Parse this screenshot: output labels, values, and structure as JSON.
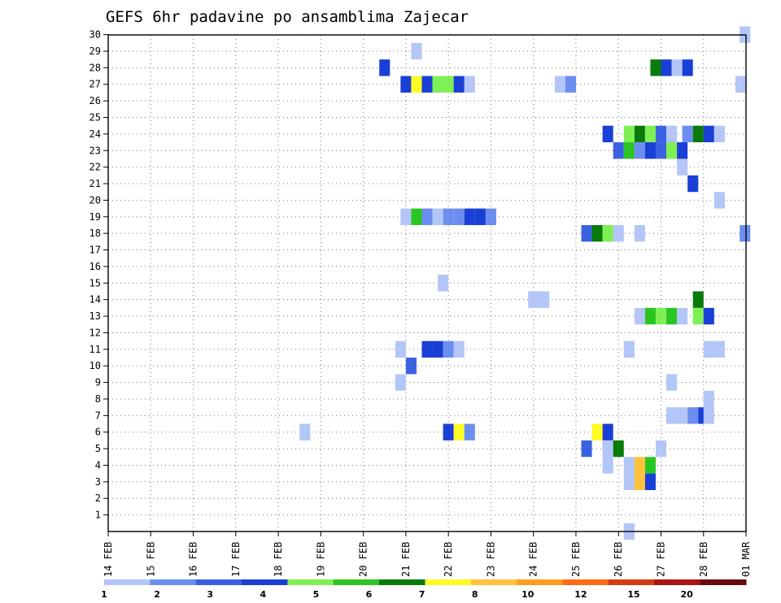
{
  "chart_data": {
    "type": "heatmap",
    "title": "GEFS 6hr padavine po ansamblima Zajecar",
    "y_ticks": [
      "1",
      "2",
      "3",
      "4",
      "5",
      "6",
      "7",
      "8",
      "9",
      "10",
      "11",
      "12",
      "13",
      "14",
      "15",
      "16",
      "17",
      "18",
      "19",
      "20",
      "21",
      "22",
      "23",
      "24",
      "25",
      "26",
      "27",
      "28",
      "29",
      "30"
    ],
    "x_ticks": [
      "14 FEB",
      "15 FEB",
      "16 FEB",
      "17 FEB",
      "18 FEB",
      "19 FEB",
      "20 FEB",
      "21 FEB",
      "22 FEB",
      "23 FEB",
      "24 FEB",
      "25 FEB",
      "26 FEB",
      "27 FEB",
      "28 FEB",
      "01 MAR"
    ],
    "colorbar": {
      "colors": [
        "#b3c6f7",
        "#6b8ef0",
        "#3a62e0",
        "#1a3fd6",
        "#7ef054",
        "#29c523",
        "#0a7a0a",
        "#fffb24",
        "#ffc23a",
        "#ff9d1e",
        "#ff6a14",
        "#d63a14",
        "#ab1414",
        "#6b0a0a"
      ],
      "labels": [
        {
          "text": "1",
          "at": 0
        },
        {
          "text": "2",
          "at": 1
        },
        {
          "text": "3",
          "at": 2
        },
        {
          "text": "4",
          "at": 3
        },
        {
          "text": "5",
          "at": 4
        },
        {
          "text": "6",
          "at": 5
        },
        {
          "text": "7",
          "at": 6
        },
        {
          "text": "8",
          "at": 7
        },
        {
          "text": "10",
          "at": 8
        },
        {
          "text": "12",
          "at": 9
        },
        {
          "text": "15",
          "at": 10
        },
        {
          "text": "20",
          "at": 11
        }
      ]
    },
    "cells": [
      {
        "s": 30,
        "t": 59.4,
        "c": 0
      },
      {
        "s": 29,
        "t": 28.5,
        "c": 0
      },
      {
        "s": 28,
        "t": 25.5,
        "c": 3
      },
      {
        "s": 28,
        "t": 51,
        "c": 6
      },
      {
        "s": 28,
        "t": 52,
        "c": 3
      },
      {
        "s": 28,
        "t": 53,
        "c": 0
      },
      {
        "s": 28,
        "t": 54,
        "c": 3
      },
      {
        "s": 27,
        "t": 27.5,
        "c": 3
      },
      {
        "s": 27,
        "t": 28.5,
        "c": 7
      },
      {
        "s": 27,
        "t": 29.5,
        "c": 3
      },
      {
        "s": 27,
        "t": 30.5,
        "c": 4
      },
      {
        "s": 27,
        "t": 31.5,
        "c": 4
      },
      {
        "s": 27,
        "t": 32.5,
        "c": 3
      },
      {
        "s": 27,
        "t": 33.5,
        "c": 0
      },
      {
        "s": 27,
        "t": 42,
        "c": 0
      },
      {
        "s": 27,
        "t": 43,
        "c": 1
      },
      {
        "s": 27,
        "t": 59,
        "c": 0
      },
      {
        "s": 24,
        "t": 46.5,
        "c": 3
      },
      {
        "s": 24,
        "t": 48.5,
        "c": 4
      },
      {
        "s": 24,
        "t": 49.5,
        "c": 6
      },
      {
        "s": 24,
        "t": 50.5,
        "c": 4
      },
      {
        "s": 24,
        "t": 51.5,
        "c": 2
      },
      {
        "s": 24,
        "t": 52.5,
        "c": 0
      },
      {
        "s": 24,
        "t": 54,
        "c": 1
      },
      {
        "s": 24,
        "t": 55,
        "c": 6
      },
      {
        "s": 24,
        "t": 56,
        "c": 3
      },
      {
        "s": 24,
        "t": 57,
        "c": 0
      },
      {
        "s": 23,
        "t": 47.5,
        "c": 2
      },
      {
        "s": 23,
        "t": 48.5,
        "c": 5
      },
      {
        "s": 23,
        "t": 49.5,
        "c": 1
      },
      {
        "s": 23,
        "t": 50.5,
        "c": 3
      },
      {
        "s": 23,
        "t": 51.5,
        "c": 2
      },
      {
        "s": 23,
        "t": 52.5,
        "c": 4
      },
      {
        "s": 23,
        "t": 53.5,
        "c": 3
      },
      {
        "s": 22,
        "t": 53.5,
        "c": 0
      },
      {
        "s": 21,
        "t": 54.5,
        "c": 3
      },
      {
        "s": 20,
        "t": 57,
        "c": 0
      },
      {
        "s": 19,
        "t": 27.5,
        "c": 0
      },
      {
        "s": 19,
        "t": 28.5,
        "c": 5
      },
      {
        "s": 19,
        "t": 29.5,
        "c": 1
      },
      {
        "s": 19,
        "t": 30.5,
        "c": 0
      },
      {
        "s": 19,
        "t": 31.5,
        "c": 1
      },
      {
        "s": 19,
        "t": 32.5,
        "c": 1
      },
      {
        "s": 19,
        "t": 33.5,
        "c": 3
      },
      {
        "s": 19,
        "t": 34.5,
        "c": 3
      },
      {
        "s": 19,
        "t": 35.5,
        "c": 1
      },
      {
        "s": 18,
        "t": 44.5,
        "c": 2
      },
      {
        "s": 18,
        "t": 45.5,
        "c": 6
      },
      {
        "s": 18,
        "t": 46.5,
        "c": 4
      },
      {
        "s": 18,
        "t": 47.5,
        "c": 0
      },
      {
        "s": 18,
        "t": 49.5,
        "c": 0
      },
      {
        "s": 18,
        "t": 59.4,
        "c": 1
      },
      {
        "s": 15,
        "t": 31,
        "c": 0
      },
      {
        "s": 14,
        "t": 39.5,
        "c": 0
      },
      {
        "s": 14,
        "t": 40.5,
        "c": 0
      },
      {
        "s": 14,
        "t": 55,
        "c": 6
      },
      {
        "s": 13,
        "t": 49.5,
        "c": 0
      },
      {
        "s": 13,
        "t": 50.5,
        "c": 5
      },
      {
        "s": 13,
        "t": 51.5,
        "c": 4
      },
      {
        "s": 13,
        "t": 52.5,
        "c": 5
      },
      {
        "s": 13,
        "t": 53.5,
        "c": 0
      },
      {
        "s": 13,
        "t": 55,
        "c": 4
      },
      {
        "s": 13,
        "t": 56,
        "c": 3
      },
      {
        "s": 11,
        "t": 27,
        "c": 0
      },
      {
        "s": 11,
        "t": 29.5,
        "c": 3
      },
      {
        "s": 11,
        "t": 30.5,
        "c": 3
      },
      {
        "s": 11,
        "t": 31.5,
        "c": 1
      },
      {
        "s": 11,
        "t": 32.5,
        "c": 0
      },
      {
        "s": 11,
        "t": 48.5,
        "c": 0
      },
      {
        "s": 11,
        "t": 56,
        "c": 0
      },
      {
        "s": 11,
        "t": 57,
        "c": 0
      },
      {
        "s": 10,
        "t": 28,
        "c": 2
      },
      {
        "s": 9,
        "t": 27,
        "c": 0
      },
      {
        "s": 9,
        "t": 52.5,
        "c": 0
      },
      {
        "s": 8,
        "t": 56,
        "c": 0
      },
      {
        "s": 7,
        "t": 52.5,
        "c": 0
      },
      {
        "s": 7,
        "t": 53.5,
        "c": 0
      },
      {
        "s": 7,
        "t": 54.5,
        "c": 1
      },
      {
        "s": 7,
        "t": 55.5,
        "c": 3
      },
      {
        "s": 7,
        "t": 56,
        "c": 0
      },
      {
        "s": 6,
        "t": 18,
        "c": 0
      },
      {
        "s": 6,
        "t": 31.5,
        "c": 3
      },
      {
        "s": 6,
        "t": 32.5,
        "c": 7
      },
      {
        "s": 6,
        "t": 33.5,
        "c": 1
      },
      {
        "s": 6,
        "t": 45.5,
        "c": 7
      },
      {
        "s": 6,
        "t": 46.5,
        "c": 3
      },
      {
        "s": 5,
        "t": 44.5,
        "c": 2
      },
      {
        "s": 5,
        "t": 46.5,
        "c": 0
      },
      {
        "s": 5,
        "t": 47.5,
        "c": 6
      },
      {
        "s": 5,
        "t": 51.5,
        "c": 0
      },
      {
        "s": 4,
        "t": 46.5,
        "c": 0
      },
      {
        "s": 4,
        "t": 48.5,
        "c": 0
      },
      {
        "s": 4,
        "t": 49.5,
        "c": 8
      },
      {
        "s": 4,
        "t": 50.5,
        "c": 5
      },
      {
        "s": 3,
        "t": 48.5,
        "c": 0
      },
      {
        "s": 3,
        "t": 49.5,
        "c": 8
      },
      {
        "s": 3,
        "t": 50.5,
        "c": 3
      },
      {
        "s": 0,
        "t": 48.5,
        "c": 0
      }
    ]
  }
}
